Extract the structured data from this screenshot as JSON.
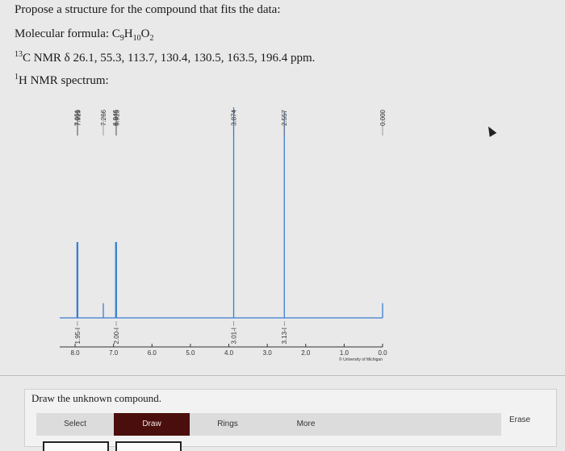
{
  "question": {
    "prompt": "Propose a structure for the compound that fits the data:",
    "formula_label": "Molecular formula: C",
    "formula_c": "9",
    "formula_h_prefix": "H",
    "formula_h": "10",
    "formula_o_prefix": "O",
    "formula_o": "2",
    "c13_sup": "13",
    "c13_text": "C NMR δ 26.1, 55.3, 113.7, 130.4, 130.5, 163.5, 196.4 ppm.",
    "h1_sup": "1",
    "h1_text": "H NMR spectrum:"
  },
  "chart_data": {
    "type": "line",
    "xlim": [
      8.4,
      0
    ],
    "x_ticks": [
      "8.0",
      "7.0",
      "6.0",
      "5.0",
      "4.0",
      "3.0",
      "2.0",
      "1.0",
      "0.0"
    ],
    "peaks": [
      {
        "shift": 7.951,
        "height": 0.36
      },
      {
        "shift": 7.929,
        "height": 0.36
      },
      {
        "shift": 7.266,
        "height": 0.07
      },
      {
        "shift": 6.946,
        "height": 0.36
      },
      {
        "shift": 6.923,
        "height": 0.36
      },
      {
        "shift": 3.874,
        "height": 1.0
      },
      {
        "shift": 2.557,
        "height": 0.98
      },
      {
        "shift": 0.0,
        "height": 0.07
      }
    ],
    "peak_labels": [
      {
        "shift": 7.951,
        "text": "7.951"
      },
      {
        "shift": 7.929,
        "text": "7.929"
      },
      {
        "shift": 7.266,
        "text": "7.266"
      },
      {
        "shift": 6.946,
        "text": "6.946"
      },
      {
        "shift": 6.923,
        "text": "6.923"
      },
      {
        "shift": 3.874,
        "text": "3.874"
      },
      {
        "shift": 2.557,
        "text": "2.557"
      },
      {
        "shift": 0.0,
        "text": "0.000"
      }
    ],
    "integrations": [
      {
        "shift": 7.94,
        "text": "1.95-I"
      },
      {
        "shift": 6.93,
        "text": "2.00-I"
      },
      {
        "shift": 3.874,
        "text": "3.01-I"
      },
      {
        "shift": 2.557,
        "text": "3.13-I"
      }
    ],
    "credit": "© University of Michigan"
  },
  "editor": {
    "label": "Draw the unknown compound.",
    "tabs": {
      "select": "Select",
      "draw": "Draw",
      "rings": "Rings",
      "more": "More"
    },
    "erase": "Erase"
  }
}
